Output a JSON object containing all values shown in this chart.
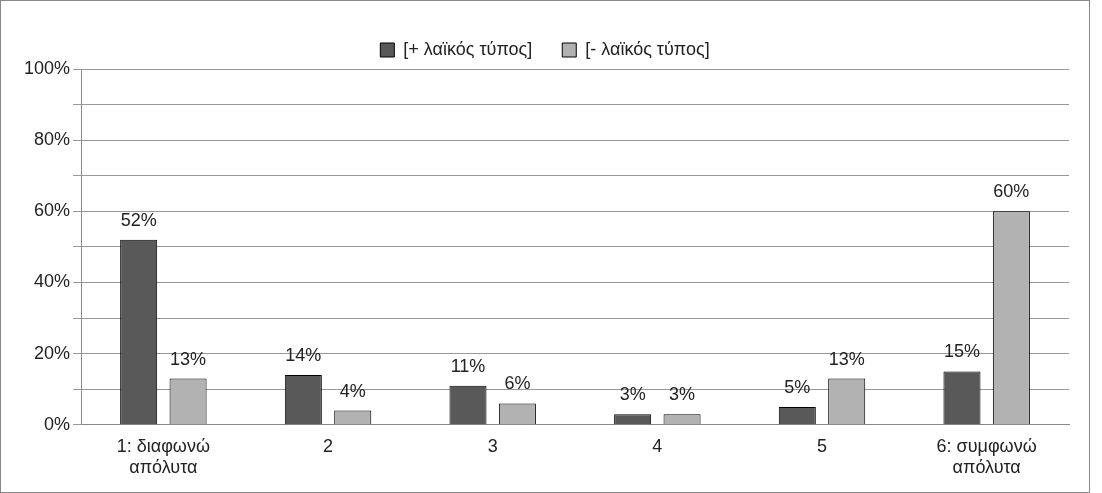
{
  "chart_data": {
    "type": "bar",
    "categories": [
      "1: διαφωνώ απόλυτα",
      "2",
      "3",
      "4",
      "5",
      "6: συμφωνώ απόλυτα"
    ],
    "series": [
      {
        "name": "[+ λαϊκός τύπος]",
        "color": "#595959",
        "values": [
          52,
          14,
          11,
          3,
          5,
          15
        ],
        "value_labels": [
          "52%",
          "14%",
          "11%",
          "3%",
          "5%",
          "15%"
        ]
      },
      {
        "name": "[- λαϊκός τύπος]",
        "color": "#b2b2b2",
        "values": [
          13,
          4,
          6,
          3,
          13,
          60
        ],
        "value_labels": [
          "13%",
          "4%",
          "6%",
          "3%",
          "13%",
          "60%"
        ]
      }
    ],
    "ylim": [
      0,
      100
    ],
    "yticks": [
      {
        "value": 0,
        "label": "0%"
      },
      {
        "value": 10,
        "label": null
      },
      {
        "value": 20,
        "label": "20%"
      },
      {
        "value": 30,
        "label": null
      },
      {
        "value": 40,
        "label": "40%"
      },
      {
        "value": 50,
        "label": null
      },
      {
        "value": 60,
        "label": "60%"
      },
      {
        "value": 70,
        "label": null
      },
      {
        "value": 80,
        "label": "80%"
      },
      {
        "value": 90,
        "label": null
      },
      {
        "value": 100,
        "label": "100%"
      }
    ],
    "grid": "y",
    "legend": "top"
  }
}
